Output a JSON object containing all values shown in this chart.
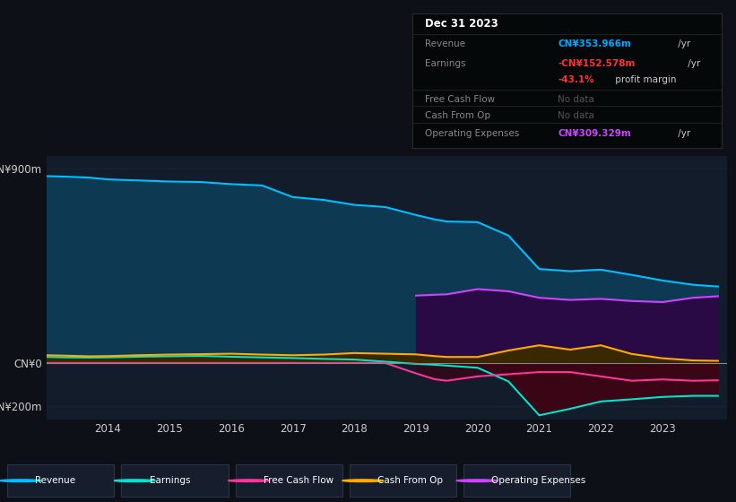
{
  "bg_color": "#0d1117",
  "plot_bg_color": "#131c2b",
  "years": [
    2013.0,
    2013.3,
    2013.7,
    2014.0,
    2014.5,
    2015.0,
    2015.5,
    2016.0,
    2016.5,
    2017.0,
    2017.5,
    2018.0,
    2018.5,
    2019.0,
    2019.3,
    2019.5,
    2020.0,
    2020.5,
    2021.0,
    2021.5,
    2022.0,
    2022.5,
    2023.0,
    2023.5,
    2023.9
  ],
  "revenue": [
    865,
    863,
    858,
    850,
    845,
    840,
    838,
    828,
    822,
    768,
    755,
    732,
    722,
    685,
    665,
    655,
    652,
    590,
    435,
    425,
    432,
    408,
    382,
    362,
    354
  ],
  "earnings": [
    28,
    26,
    25,
    26,
    29,
    31,
    33,
    29,
    26,
    23,
    19,
    16,
    6,
    -4,
    -8,
    -12,
    -22,
    -85,
    -242,
    -212,
    -178,
    -168,
    -157,
    -152,
    -152
  ],
  "fcf": [
    0,
    0,
    0,
    0,
    0,
    0,
    0,
    0,
    0,
    0,
    0,
    0,
    0,
    -48,
    -75,
    -82,
    -62,
    -52,
    -42,
    -42,
    -62,
    -82,
    -76,
    -82,
    -80
  ],
  "cash_from_op": [
    36,
    34,
    31,
    32,
    36,
    39,
    41,
    43,
    39,
    36,
    39,
    46,
    43,
    40,
    32,
    28,
    28,
    58,
    82,
    62,
    82,
    42,
    22,
    12,
    10
  ],
  "opex": [
    0,
    0,
    0,
    0,
    0,
    0,
    0,
    0,
    0,
    0,
    0,
    0,
    0,
    312,
    316,
    318,
    342,
    332,
    302,
    292,
    297,
    287,
    282,
    302,
    309
  ],
  "ylim": [
    -260,
    960
  ],
  "yticks": [
    -200,
    0,
    900
  ],
  "ytick_labels": [
    "-CN¥200m",
    "CN¥0",
    "CN¥900m"
  ],
  "xtick_years": [
    2014,
    2015,
    2016,
    2017,
    2018,
    2019,
    2020,
    2021,
    2022,
    2023
  ],
  "revenue_line_color": "#00bfff",
  "revenue_fill": "#0d3a52",
  "earnings_line_color": "#00e5cc",
  "fcf_line_color": "#ff3399",
  "fcf_neg_fill": "#4a0a1a",
  "cashop_line_color": "#ffaa00",
  "cashop_fill": "#3a2800",
  "opex_line_color": "#cc44ff",
  "opex_fill": "#2a0a45",
  "zero_line_color": "#888888",
  "grid_color": "#1a2535",
  "legend_bg": "#161e2e",
  "legend_border": "#2a3345",
  "info_box_bg": "#050808",
  "info_box_border": "#2a2a2a",
  "legend_items": [
    {
      "label": "Revenue",
      "color": "#00bfff"
    },
    {
      "label": "Earnings",
      "color": "#00e5cc"
    },
    {
      "label": "Free Cash Flow",
      "color": "#ff3399"
    },
    {
      "label": "Cash From Op",
      "color": "#ffaa00"
    },
    {
      "label": "Operating Expenses",
      "color": "#cc44ff"
    }
  ]
}
